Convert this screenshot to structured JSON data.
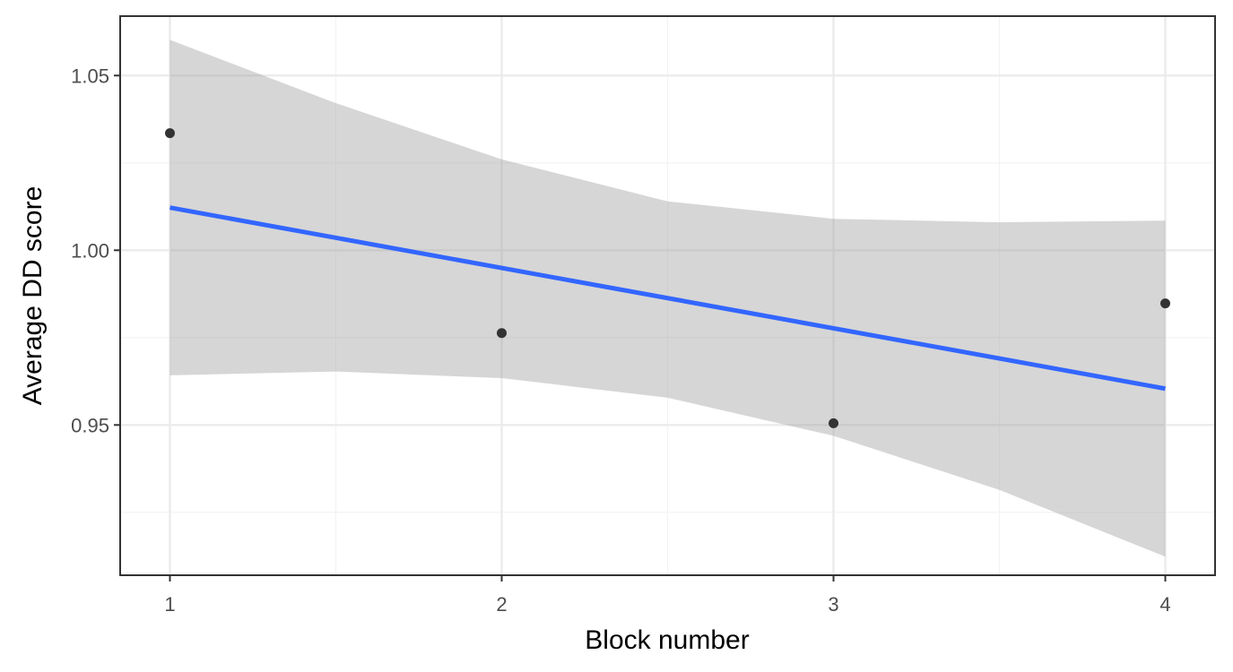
{
  "chart_data": {
    "type": "scatter",
    "title": "",
    "xlabel": "Block number",
    "ylabel": "Average DD score",
    "xlim": [
      0.85,
      4.15
    ],
    "ylim": [
      0.907,
      1.067
    ],
    "x_ticks": [
      1,
      2,
      3,
      4
    ],
    "x_tick_labels": [
      "1",
      "2",
      "3",
      "4"
    ],
    "y_ticks": [
      0.95,
      1.0,
      1.05
    ],
    "y_tick_labels": [
      "0.95",
      "1.00",
      "1.05"
    ],
    "grid": true,
    "legend": "none",
    "points": {
      "x": [
        1,
        2,
        3,
        4
      ],
      "y": [
        1.0335,
        0.9763,
        0.9505,
        0.9848
      ]
    },
    "fit_line": {
      "method": "linear regression",
      "x": [
        1,
        4
      ],
      "y": [
        1.0122,
        0.9604
      ]
    },
    "confidence_band": {
      "x": [
        1.0,
        1.5,
        2.0,
        2.5,
        3.0,
        3.5,
        4.0
      ],
      "lower": [
        0.9642,
        0.9653,
        0.9634,
        0.9578,
        0.9469,
        0.9314,
        0.9123
      ],
      "upper": [
        1.0602,
        1.0421,
        1.026,
        1.014,
        1.009,
        1.008,
        1.0085
      ]
    },
    "colors": {
      "background": "#ffffff",
      "panel_border": "#333333",
      "grid_major": "#ebebeb",
      "grid_minor": "#f3f3f3",
      "points": "#333333",
      "fit_line": "#3366ff",
      "band": "#999999"
    }
  }
}
